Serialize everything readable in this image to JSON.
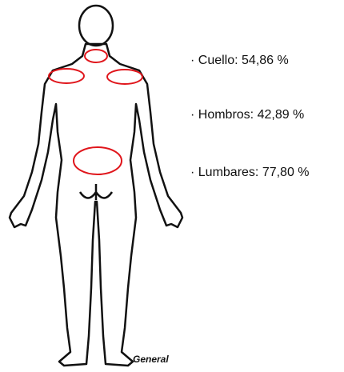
{
  "labels": [
    "· Cuello: 54,86 %",
    "· Hombros: 42,89 %",
    "· Lumbares: 77,80 %"
  ],
  "caption": "General"
}
